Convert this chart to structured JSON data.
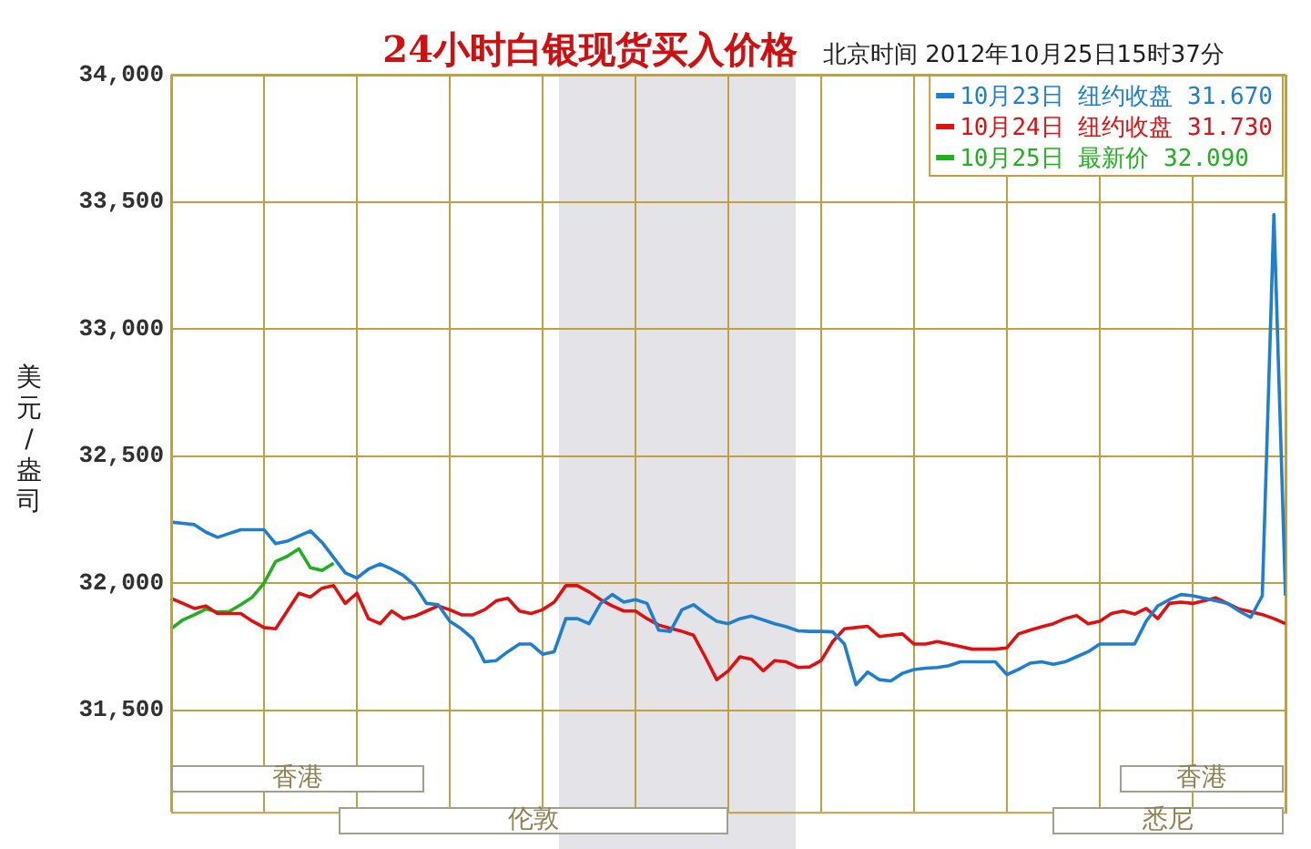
{
  "chart_data": {
    "type": "line",
    "title": "24小时白银现货买入价格",
    "subtitle": "北京时间 2012年10月25日15时37分",
    "ylabel": "美元/盎司",
    "categories": [
      null,
      null,
      null,
      null,
      null,
      null,
      null,
      null,
      null,
      null,
      null,
      null,
      null,
      null,
      null,
      null,
      null,
      null,
      null,
      null,
      null,
      null,
      null,
      null,
      null,
      null,
      null,
      null,
      null,
      null,
      null,
      null,
      null,
      null,
      null,
      null,
      null,
      null,
      null,
      null,
      null,
      null,
      null,
      null,
      null,
      null,
      null,
      null,
      null,
      null,
      null,
      null,
      null,
      null,
      null,
      null,
      null,
      null,
      null,
      null,
      null,
      null,
      null,
      null,
      null,
      null,
      null,
      null,
      null,
      null,
      null,
      null,
      null,
      null,
      null,
      null,
      null,
      null,
      null,
      null,
      null,
      null,
      null,
      null,
      null,
      null,
      null,
      null,
      null,
      null,
      null,
      null,
      null,
      null,
      null,
      null,
      null
    ],
    "ylim": [
      31100,
      34000
    ],
    "yticks": [
      {
        "value": 31500,
        "label": "31,500"
      },
      {
        "value": 32000,
        "label": "32,000"
      },
      {
        "value": 32500,
        "label": "32,500"
      },
      {
        "value": 33000,
        "label": "33,000"
      },
      {
        "value": 33500,
        "label": "33,500"
      },
      {
        "value": 34000,
        "label": "34,000"
      }
    ],
    "grid": true,
    "legend": "top right",
    "annotations": [
      "香港",
      "伦敦",
      "香港",
      "悉尼"
    ],
    "series": [
      {
        "name": "10月23日 纽约收盘 31.670",
        "color": "#1e7fd0",
        "values": [
          32240,
          32235,
          32230,
          32200,
          32180,
          32195,
          32210,
          32210,
          32210,
          32155,
          32165,
          32185,
          32205,
          32160,
          32100,
          32040,
          32020,
          32055,
          32075,
          32055,
          32030,
          31990,
          31920,
          31915,
          31850,
          31820,
          31780,
          31690,
          31695,
          31730,
          31760,
          31760,
          31720,
          31730,
          31860,
          31860,
          31840,
          31920,
          31955,
          31925,
          31935,
          31920,
          31815,
          31810,
          31895,
          31915,
          31880,
          31850,
          31840,
          31860,
          31870,
          31855,
          31840,
          31828,
          31812,
          31810,
          31810,
          31808,
          31760,
          31600,
          31650,
          31620,
          31615,
          31645,
          31660,
          31665,
          31668,
          31675,
          31690,
          31690,
          31690,
          31690,
          31640,
          31660,
          31685,
          31690,
          31680,
          31690,
          31710,
          31730,
          31760,
          31760,
          31760,
          31760,
          31850,
          31910,
          31935,
          31955,
          31950,
          31940,
          31930,
          31920,
          31890,
          31865,
          31950,
          33450,
          31950
        ]
      },
      {
        "name": "10月24日 纽约收盘 31.730",
        "color": "#e01010",
        "values": [
          31940,
          31920,
          31900,
          31910,
          31880,
          31880,
          31880,
          31850,
          31825,
          31820,
          31890,
          31960,
          31945,
          31980,
          31990,
          31920,
          31960,
          31860,
          31840,
          31890,
          31860,
          31870,
          31890,
          31910,
          31895,
          31875,
          31875,
          31895,
          31930,
          31940,
          31890,
          31880,
          31895,
          31925,
          31990,
          31990,
          31965,
          31935,
          31910,
          31890,
          31890,
          31860,
          31835,
          31822,
          31810,
          31795,
          31710,
          31620,
          31655,
          31710,
          31700,
          31655,
          31695,
          31690,
          31668,
          31670,
          31695,
          31770,
          31820,
          31825,
          31830,
          31790,
          31795,
          31800,
          31760,
          31760,
          31770,
          31760,
          31750,
          31740,
          31740,
          31740,
          31745,
          31800,
          31815,
          31828,
          31840,
          31860,
          31872,
          31840,
          31850,
          31880,
          31890,
          31878,
          31900,
          31860,
          31920,
          31925,
          31920,
          31930,
          31942,
          31920,
          31898,
          31887,
          31876,
          31860,
          31840
        ]
      },
      {
        "name": "10月25日 最新价 32.090",
        "color": "#20b020",
        "values": [
          31820,
          31855,
          31875,
          31898,
          31886,
          31888,
          31915,
          31945,
          32000,
          32085,
          32105,
          32135,
          32060,
          32050,
          32078,
          null,
          null,
          null,
          null,
          null,
          null,
          null,
          null,
          null,
          null,
          null,
          null,
          null,
          null,
          null,
          null,
          null,
          null,
          null,
          null,
          null,
          null,
          null,
          null,
          null,
          null,
          null,
          null,
          null,
          null,
          null,
          null,
          null,
          null,
          null,
          null,
          null,
          null,
          null,
          null,
          null,
          null,
          null,
          null,
          null,
          null,
          null,
          null,
          null,
          null,
          null,
          null,
          null,
          null,
          null,
          null,
          null,
          null,
          null,
          null,
          null,
          null,
          null,
          null,
          null,
          null,
          null,
          null,
          null,
          null,
          null,
          null,
          null,
          null,
          null,
          null,
          null,
          null,
          null,
          null,
          null,
          null
        ]
      }
    ]
  }
}
